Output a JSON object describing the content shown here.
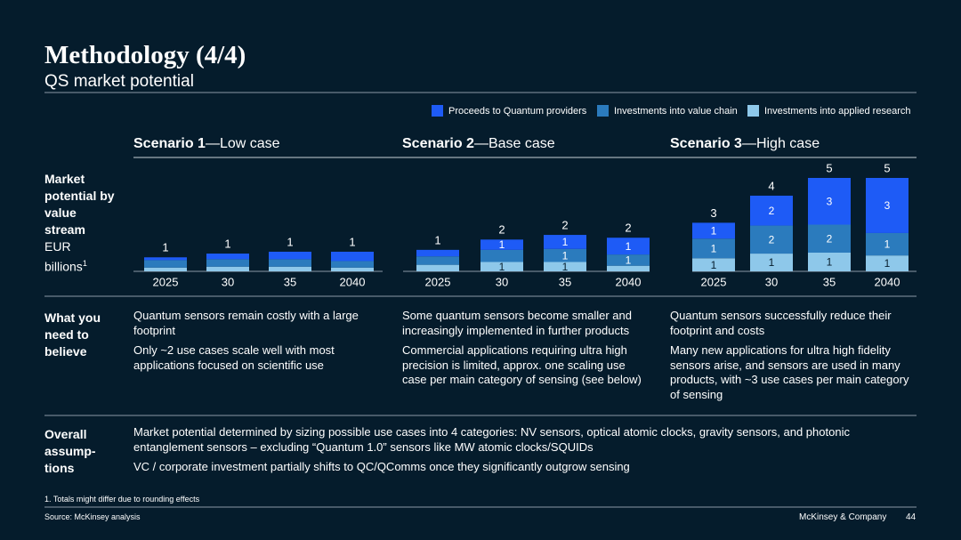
{
  "header": {
    "title": "Methodology (4/4)",
    "subtitle": "QS market potential"
  },
  "row_labels": {
    "market": {
      "bold": "Market potential by value stream",
      "unit": "EUR billions",
      "note": "1"
    },
    "believe": "What you need to believe",
    "overall": "Overall assump-tions"
  },
  "chart_data": [
    {
      "type": "bar",
      "stacked": true,
      "title": {
        "bold": "Scenario 1",
        "text": "—Low case"
      },
      "categories": [
        "2025",
        "30",
        "35",
        "2040"
      ],
      "ylim": [
        0,
        5
      ],
      "series": [
        {
          "name": "Investments into applied research",
          "color": "#8ec8ea",
          "values": [
            0.2,
            0.25,
            0.25,
            0.2
          ]
        },
        {
          "name": "Investments into value chain",
          "color": "#2b7bbd",
          "values": [
            0.4,
            0.4,
            0.4,
            0.35
          ]
        },
        {
          "name": "Proceeds to Quantum providers",
          "color": "#1e5bf6",
          "values": [
            0.15,
            0.3,
            0.4,
            0.5
          ]
        }
      ],
      "total_labels": [
        "1",
        "1",
        "1",
        "1"
      ]
    },
    {
      "type": "bar",
      "stacked": true,
      "title": {
        "bold": "Scenario 2",
        "text": "—Base case"
      },
      "categories": [
        "2025",
        "30",
        "35",
        "2040"
      ],
      "ylim": [
        0,
        5
      ],
      "series": [
        {
          "name": "Investments into applied research",
          "color": "#8ec8ea",
          "label_color": "#051c2c",
          "values": [
            0.35,
            0.5,
            0.5,
            0.3
          ],
          "value_labels": [
            null,
            "1",
            "1",
            null
          ]
        },
        {
          "name": "Investments into value chain",
          "color": "#2b7bbd",
          "label_color": "#ffffff",
          "values": [
            0.45,
            0.65,
            0.7,
            0.6
          ],
          "value_labels": [
            null,
            null,
            "1",
            "1"
          ]
        },
        {
          "name": "Proceeds to Quantum providers",
          "color": "#1e5bf6",
          "label_color": "#ffffff",
          "values": [
            0.35,
            0.55,
            0.75,
            0.9
          ],
          "value_labels": [
            null,
            "1",
            "1",
            "1"
          ]
        }
      ],
      "total_labels": [
        "1",
        "2",
        "2",
        "2"
      ]
    },
    {
      "type": "bar",
      "stacked": true,
      "title": {
        "bold": "Scenario 3",
        "text": "—High case"
      },
      "categories": [
        "2025",
        "30",
        "35",
        "2040"
      ],
      "ylim": [
        0,
        5
      ],
      "series": [
        {
          "name": "Investments into applied research",
          "color": "#8ec8ea",
          "label_color": "#051c2c",
          "values": [
            0.7,
            0.95,
            1.0,
            0.85
          ],
          "value_labels": [
            "1",
            "1",
            "1",
            "1"
          ]
        },
        {
          "name": "Investments into value chain",
          "color": "#2b7bbd",
          "label_color": "#ffffff",
          "values": [
            1.05,
            1.5,
            1.5,
            1.2
          ],
          "value_labels": [
            "1",
            "2",
            "2",
            "1"
          ]
        },
        {
          "name": "Proceeds to Quantum providers",
          "color": "#1e5bf6",
          "label_color": "#ffffff",
          "values": [
            0.85,
            1.6,
            2.5,
            2.95
          ],
          "value_labels": [
            "1",
            "2",
            "3",
            "3"
          ]
        }
      ],
      "total_labels": [
        "3",
        "4",
        "5",
        "5"
      ]
    }
  ],
  "believe": [
    [
      "Quantum sensors remain costly with a large footprint",
      "Only ~2 use cases scale well with most applications focused on scientific use"
    ],
    [
      "Some quantum sensors become smaller and increasingly implemented in further products",
      "Commercial applications requiring ultra high precision is limited, approx. one scaling use case per main category of sensing (see below)"
    ],
    [
      "Quantum sensors successfully reduce their footprint and costs",
      "Many new applications for ultra high fidelity sensors arise, and sensors are used in many products, with ~3 use cases per main category of sensing"
    ]
  ],
  "overall": [
    "Market potential determined by sizing possible use cases into 4 categories: NV sensors, optical atomic clocks, gravity sensors, and photonic entanglement sensors – excluding “Quantum 1.0” sensors like MW atomic clocks/SQUIDs",
    "VC / corporate investment partially shifts to QC/QComms once they significantly outgrow sensing"
  ],
  "footer": {
    "footnote": "1. Totals might differ due to rounding effects",
    "source": "Source: McKinsey analysis",
    "company": "McKinsey & Company",
    "page": "44"
  }
}
